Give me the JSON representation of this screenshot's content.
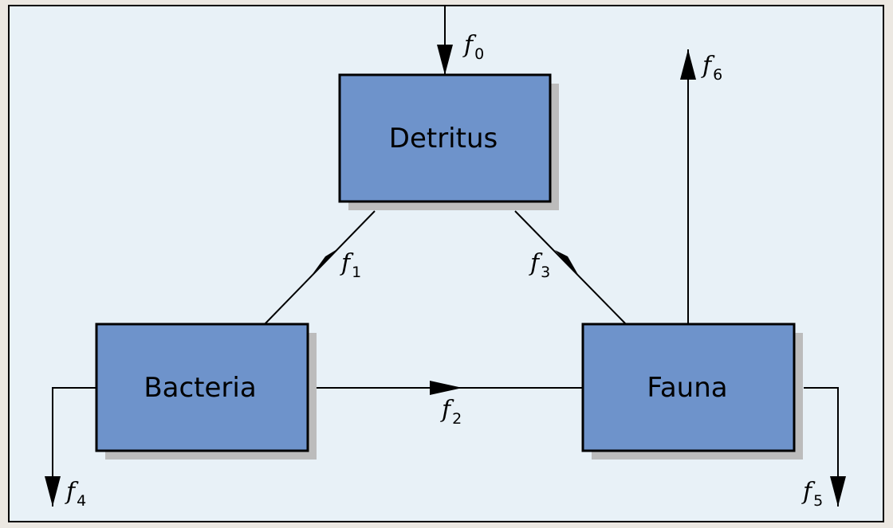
{
  "colors": {
    "page_background": "#ece8e2",
    "panel_background": "#e8f1f7",
    "box_fill": "#6e93cb",
    "box_shadow": "#bcbcbc",
    "stroke": "#000000"
  },
  "boxes": {
    "detritus": "Detritus",
    "bacteria": "Bacteria",
    "fauna": "Fauna"
  },
  "flows": {
    "f0": {
      "symbol": "f",
      "subscript": "0"
    },
    "f1": {
      "symbol": "f",
      "subscript": "1"
    },
    "f2": {
      "symbol": "f",
      "subscript": "2"
    },
    "f3": {
      "symbol": "f",
      "subscript": "3"
    },
    "f4": {
      "symbol": "f",
      "subscript": "4"
    },
    "f5": {
      "symbol": "f",
      "subscript": "5"
    },
    "f6": {
      "symbol": "f",
      "subscript": "6"
    }
  }
}
